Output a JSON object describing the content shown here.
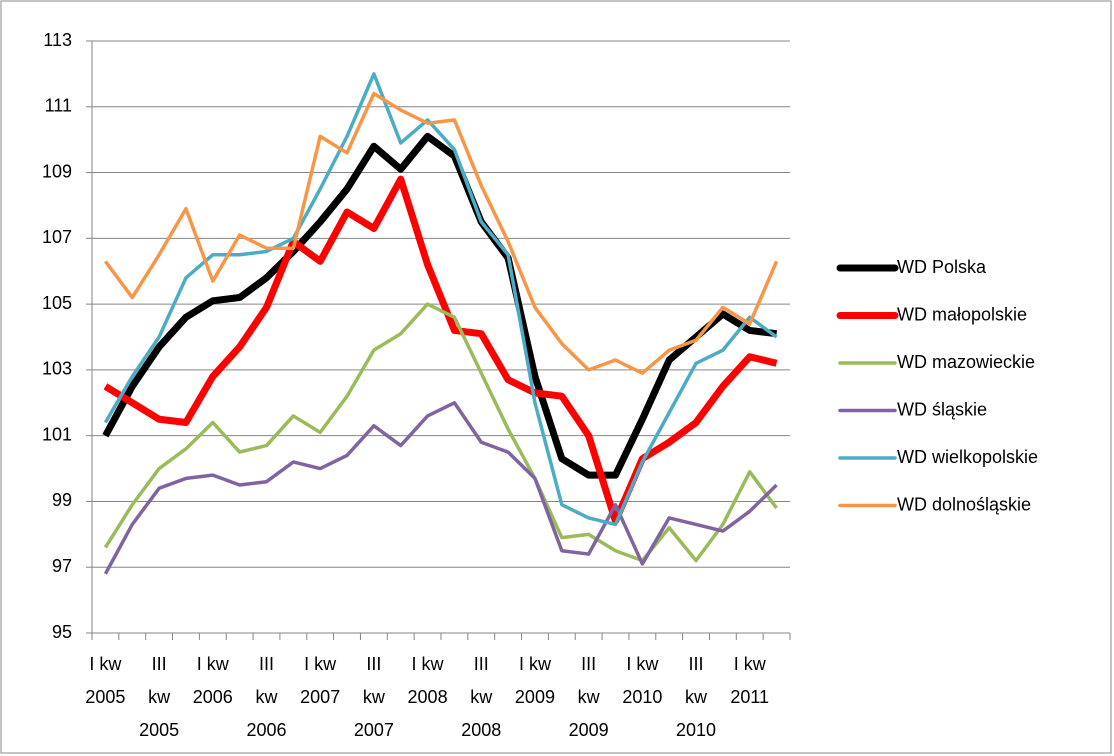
{
  "chart_data": {
    "type": "line",
    "categories": [
      "I kw\n2005",
      null,
      "III\nkw\n2005",
      null,
      "I kw\n2006",
      null,
      "III\nkw\n2006",
      null,
      "I kw\n2007",
      null,
      "III\nkw\n2007",
      null,
      "I kw\n2008",
      null,
      "III\nkw\n2008",
      null,
      "I kw\n2009",
      null,
      "III\nkw\n2009",
      null,
      "I kw\n2010",
      null,
      "III\nkw\n2010",
      null,
      "I kw\n2011",
      null
    ],
    "series": [
      {
        "name": "WD Polska",
        "color": "#000000",
        "values": [
          101.0,
          102.5,
          103.7,
          104.6,
          105.1,
          105.2,
          105.8,
          106.6,
          107.5,
          108.5,
          109.8,
          109.1,
          110.1,
          109.5,
          107.5,
          106.4,
          102.8,
          100.3,
          99.8,
          99.8,
          101.5,
          103.3,
          104.0,
          104.7,
          104.2,
          104.1
        ]
      },
      {
        "name": "WD małopolskie",
        "color": "#ff0000",
        "values": [
          102.5,
          102.0,
          101.5,
          101.4,
          102.8,
          103.7,
          104.9,
          106.9,
          106.3,
          107.8,
          107.3,
          108.8,
          106.2,
          104.2,
          104.1,
          102.7,
          102.3,
          102.2,
          101.0,
          98.4,
          100.3,
          100.8,
          101.4,
          102.5,
          103.4,
          103.2
        ]
      },
      {
        "name": "WD mazowieckie",
        "color": "#9bbb59",
        "values": [
          97.6,
          98.9,
          100.0,
          100.6,
          101.4,
          100.5,
          100.7,
          101.6,
          101.1,
          102.2,
          103.6,
          104.1,
          105.0,
          104.6,
          102.9,
          101.2,
          99.7,
          97.9,
          98.0,
          97.5,
          97.2,
          98.2,
          97.2,
          98.3,
          99.9,
          98.8
        ]
      },
      {
        "name": "WD śląskie",
        "color": "#8064a2",
        "values": [
          96.8,
          98.3,
          99.4,
          99.7,
          99.8,
          99.5,
          99.6,
          100.2,
          100.0,
          100.4,
          101.3,
          100.7,
          101.6,
          102.0,
          100.8,
          100.5,
          99.7,
          97.5,
          97.4,
          98.9,
          97.1,
          98.5,
          98.3,
          98.1,
          98.7,
          99.5
        ]
      },
      {
        "name": "WD wielkopolskie",
        "color": "#4bacc6",
        "values": [
          101.4,
          102.8,
          104.0,
          105.8,
          106.5,
          106.5,
          106.6,
          107.0,
          108.5,
          110.1,
          112.0,
          109.9,
          110.6,
          109.7,
          107.5,
          106.5,
          102.0,
          98.9,
          98.5,
          98.3,
          100.2,
          101.7,
          103.2,
          103.6,
          104.6,
          104.0
        ]
      },
      {
        "name": "WD dolnośląskie",
        "color": "#f79646",
        "values": [
          106.3,
          105.2,
          106.5,
          107.9,
          105.7,
          107.1,
          106.7,
          106.7,
          110.1,
          109.6,
          111.4,
          110.9,
          110.5,
          110.6,
          108.6,
          106.9,
          104.9,
          103.8,
          103.0,
          103.3,
          102.9,
          103.6,
          103.9,
          104.9,
          104.4,
          106.3
        ]
      }
    ],
    "ylim": [
      95,
      113
    ],
    "yticks": [
      95,
      97,
      99,
      101,
      103,
      105,
      107,
      109,
      111,
      113
    ],
    "grid": true,
    "legend": "right"
  }
}
